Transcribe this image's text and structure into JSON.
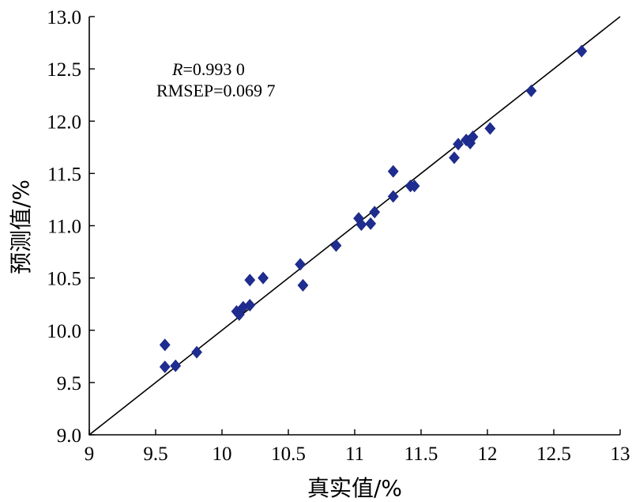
{
  "chart_data": {
    "type": "scatter",
    "xlabel": "真实值/%",
    "ylabel": "预测值/%",
    "xlim": [
      9,
      13
    ],
    "ylim": [
      9.0,
      13.0
    ],
    "xticks": [
      "9",
      "9.5",
      "10",
      "10.5",
      "11",
      "11.5",
      "12",
      "12.5",
      "13"
    ],
    "yticks": [
      "9.0",
      "9.5",
      "10.0",
      "10.5",
      "11.0",
      "11.5",
      "12.0",
      "12.5",
      "13.0"
    ],
    "annotation": {
      "r_label": "R",
      "r_value": "=0.993 0",
      "rmsep": "RMSEP=0.069 7"
    },
    "fit_line": {
      "x": [
        9,
        13
      ],
      "y": [
        9.0,
        13.0
      ]
    },
    "marker_color": "#1f2d91",
    "points": [
      {
        "x": 9.57,
        "y": 9.86
      },
      {
        "x": 9.57,
        "y": 9.65
      },
      {
        "x": 9.65,
        "y": 9.66
      },
      {
        "x": 9.81,
        "y": 9.79
      },
      {
        "x": 10.11,
        "y": 10.18
      },
      {
        "x": 10.13,
        "y": 10.15
      },
      {
        "x": 10.16,
        "y": 10.22
      },
      {
        "x": 10.21,
        "y": 10.24
      },
      {
        "x": 10.21,
        "y": 10.48
      },
      {
        "x": 10.31,
        "y": 10.5
      },
      {
        "x": 10.59,
        "y": 10.63
      },
      {
        "x": 10.61,
        "y": 10.43
      },
      {
        "x": 10.86,
        "y": 10.81
      },
      {
        "x": 11.03,
        "y": 11.07
      },
      {
        "x": 11.05,
        "y": 11.01
      },
      {
        "x": 11.12,
        "y": 11.02
      },
      {
        "x": 11.15,
        "y": 11.13
      },
      {
        "x": 11.29,
        "y": 11.52
      },
      {
        "x": 11.29,
        "y": 11.28
      },
      {
        "x": 11.42,
        "y": 11.38
      },
      {
        "x": 11.45,
        "y": 11.38
      },
      {
        "x": 11.75,
        "y": 11.65
      },
      {
        "x": 11.78,
        "y": 11.78
      },
      {
        "x": 11.84,
        "y": 11.82
      },
      {
        "x": 11.87,
        "y": 11.79
      },
      {
        "x": 11.89,
        "y": 11.85
      },
      {
        "x": 12.02,
        "y": 11.93
      },
      {
        "x": 12.33,
        "y": 12.29
      },
      {
        "x": 12.71,
        "y": 12.67
      }
    ]
  }
}
